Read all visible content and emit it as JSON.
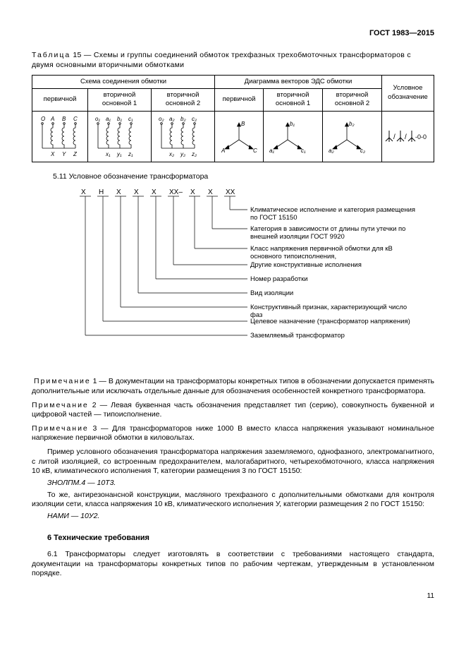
{
  "doc_header": "ГОСТ 1983—2015",
  "table_caption_label": "Таблица",
  "table_caption_num": " 15 — ",
  "table_caption_text": "Схемы и группы соединений обмоток трехфазных трехобмоточных трансформаторов с двумя основными вторичными обмотками",
  "table": {
    "head1_a": "Схема соединения обмотки",
    "head1_b": "Диаграмма векторов ЭДС обмотки",
    "head1_c": "Условное обозначение",
    "sub_a1": "первичной",
    "sub_a2": "вторичной основной 1",
    "sub_a3": "вторичной основной 2",
    "sub_b1": "первичной",
    "sub_b2": "вторичной основной 1",
    "sub_b3": "вторичной основной 2",
    "notation": "1/1/1-0-0",
    "coil1_top": [
      "O",
      "A",
      "B",
      "C"
    ],
    "coil1_bot": [
      "X",
      "Y",
      "Z"
    ],
    "coil2_top": [
      "o₁",
      "a₁",
      "b₁",
      "c₁"
    ],
    "coil2_bot": [
      "x₁",
      "y₁",
      "z₁"
    ],
    "coil3_top": [
      "o₂",
      "a₂",
      "b₂",
      "c₂"
    ],
    "coil3_bot": [
      "x₂",
      "y₂",
      "z₂"
    ],
    "vec1": [
      "A",
      "B",
      "C"
    ],
    "vec2": [
      "a₁",
      "b₁",
      "c₁"
    ],
    "vec3": [
      "a₂",
      "b₂",
      "c₂"
    ]
  },
  "section_511": "5.11 Условное обозначение трансформатора",
  "code_positions": [
    "Х",
    "Н",
    "Х",
    "Х",
    "Х",
    "ХХ–",
    "Х",
    "Х",
    "ХХ"
  ],
  "designation_items": [
    "Климатическое исполнение и категория размещения по ГОСТ 15150",
    "Категория в зависимости от длины пути утечки внешней изоляции по ГОСТ 9920",
    "Класс напряжения первичной обмотки для основного типоисполнения, кВ",
    "Другие конструктивные исполнения",
    "Номер разработки",
    "Вид изоляции",
    "Конструктивный признак, характеризующий число фаз",
    "Целевое назначение (трансформатор напряжения)",
    "Заземляемый трансформатор"
  ],
  "note_label": "Примечание",
  "note1_num": " 1 — ",
  "note1": "В документации на трансформаторы конкретных типов в обозначении допускается применять дополнительные или исключать отдельные данные для обозначения особенностей конкретного трансформатора.",
  "note2_num": " 2 — ",
  "note2": "Левая буквенная часть обозначения представляет тип (серию), совокупность буквенной и цифровой частей — типоисполнение.",
  "note3_num": " 3 — ",
  "note3": "Для трансформаторов ниже 1000 В вместо класса напряжения указывают номинальное напряжение первичной обмотки в киловольтах.",
  "example_p1": "Пример условного обозначения трансформатора напряжения заземляемого, однофазного, электромагнитного, с литой изоляцией, со встроенным предохранителем, малогабаритного, четырехобмоточного, класса напряжения 10 кВ, климатического исполнения Т, категории размещения 3 по ГОСТ 15150:",
  "example_code1": "ЗНОЛПМ.4 — 10Т3.",
  "example_p2": "То же, антирезонансной конструкции, масляного трехфазного с дополнительными обмотками для контроля изоляции сети, класса напряжения 10 кВ, климатического исполнения У, категории размещения 2 по ГОСТ 15150:",
  "example_code2": "НАМИ — 10У2.",
  "h6": "6 Технические требования",
  "p61": "6.1 Трансформаторы следует изготовлять в соответствии с требованиями настоящего стандарта, документации на трансформаторы конкретных типов по рабочим чертежам, утвержденным в установленном порядке.",
  "page_num": "11"
}
